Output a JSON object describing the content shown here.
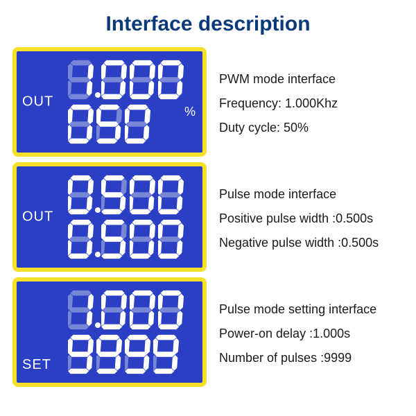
{
  "title": "Interface description",
  "title_color": "#0a3a7a",
  "lcd_style": {
    "background": "#2a3fc4",
    "border_color": "#f5e02a",
    "seg_on": "#ffffff",
    "seg_off": "#7886d8",
    "label_color": "#ffffff"
  },
  "desc_color": "#1a1a1a",
  "panels": [
    {
      "side_label": "OUT",
      "side_label_pos": "top",
      "line1_digits": "1.000",
      "line2_digits": "050",
      "line2_unit": "%",
      "desc": [
        "PWM mode interface",
        "Frequency: 1.000Khz",
        "Duty cycle: 50%"
      ]
    },
    {
      "side_label": "OUT",
      "side_label_pos": "top",
      "line1_digits": "0.500",
      "line2_digits": "0.500",
      "desc": [
        "Pulse mode interface",
        "Positive pulse width :0.500s",
        "Negative pulse width :0.500s"
      ]
    },
    {
      "side_label": "SET",
      "side_label_pos": "bottom",
      "line1_digits": "1.000",
      "line2_digits": "9999",
      "desc": [
        "Pulse mode setting interface",
        "Power-on delay :1.000s",
        "Number of pulses :9999"
      ]
    }
  ]
}
